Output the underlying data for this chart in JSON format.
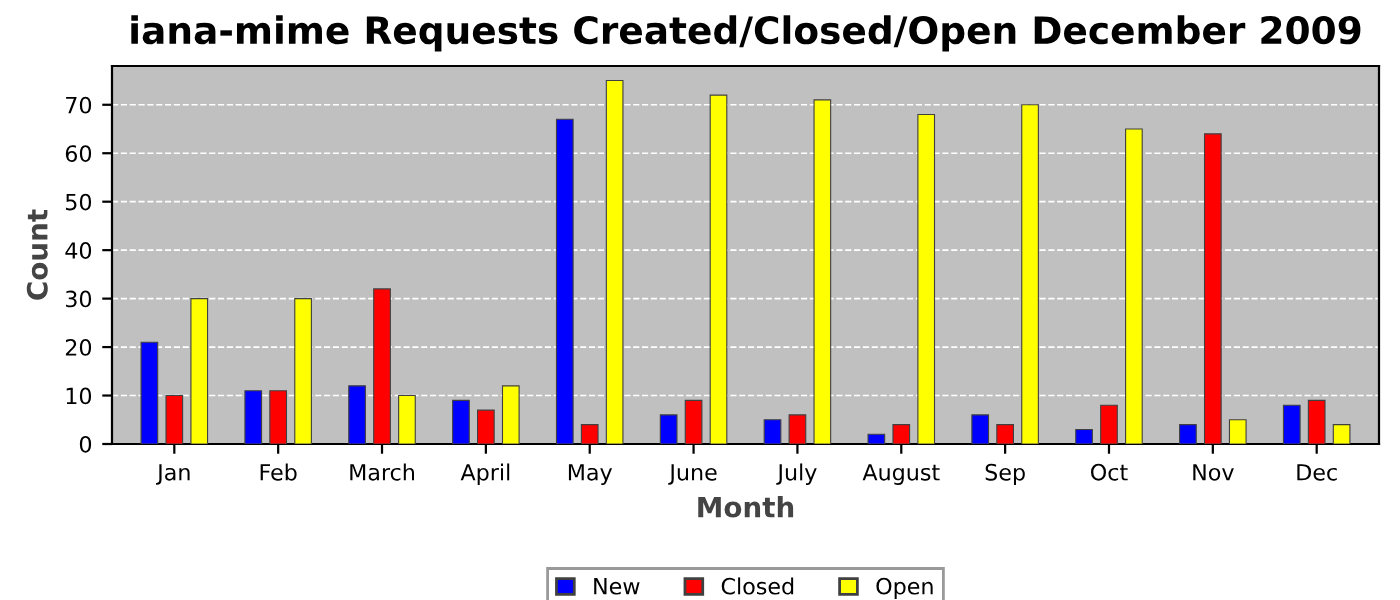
{
  "chart_data": {
    "type": "bar",
    "title": "iana-mime Requests Created/Closed/Open December 2009",
    "xlabel": "Month",
    "ylabel": "Count",
    "categories": [
      "Jan",
      "Feb",
      "March",
      "April",
      "May",
      "June",
      "July",
      "August",
      "Sep",
      "Oct",
      "Nov",
      "Dec"
    ],
    "series": [
      {
        "name": "New",
        "color": "#0000ff",
        "values": [
          21,
          11,
          12,
          9,
          67,
          6,
          5,
          2,
          6,
          3,
          4,
          8
        ]
      },
      {
        "name": "Closed",
        "color": "#ff0000",
        "values": [
          10,
          11,
          32,
          7,
          4,
          9,
          6,
          4,
          4,
          8,
          64,
          9
        ]
      },
      {
        "name": "Open",
        "color": "#ffff00",
        "values": [
          30,
          30,
          10,
          12,
          75,
          72,
          71,
          68,
          70,
          65,
          5,
          4
        ]
      }
    ],
    "ylim": [
      0,
      78
    ],
    "yticks": [
      0,
      10,
      20,
      30,
      40,
      50,
      60,
      70
    ],
    "grid": "y",
    "legend": "bottom"
  }
}
